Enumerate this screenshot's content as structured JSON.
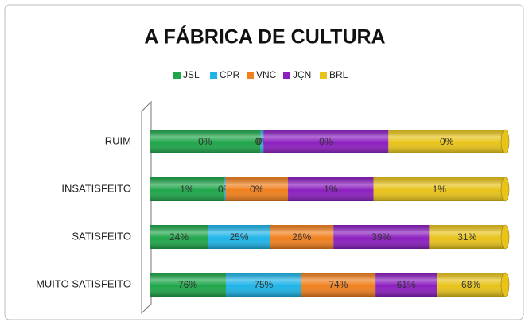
{
  "chart_data": {
    "type": "bar",
    "orientation": "horizontal",
    "stacked": "percent",
    "title": "A FÁBRICA DE CULTURA",
    "categories": [
      "RUIM",
      "INSATISFEITO",
      "SATISFEITO",
      "MUITO SATISFEITO"
    ],
    "legend": "top",
    "series": [
      {
        "name": "JSL",
        "color": "#1fa64a",
        "values": [
          0.4,
          0.55,
          24,
          76
        ],
        "value_labels": [
          "0%",
          "1%",
          "24%",
          "76%"
        ]
      },
      {
        "name": "CPR",
        "color": "#1eb4e8",
        "values": [
          0.01,
          0.01,
          25,
          75
        ],
        "value_labels": [
          "0%",
          "0%",
          "25%",
          "75%"
        ]
      },
      {
        "name": "VNC",
        "color": "#f0801e",
        "values": [
          0,
          0.46,
          26,
          74
        ],
        "value_labels": [
          "0%",
          "0%",
          "26%",
          "74%"
        ]
      },
      {
        "name": "JÇN",
        "color": "#8c1fc0",
        "values": [
          0.45,
          0.63,
          39,
          61
        ],
        "value_labels": [
          "0%",
          "1%",
          "39%",
          "61%"
        ]
      },
      {
        "name": "BRL",
        "color": "#e8c31a",
        "values": [
          0.42,
          0.97,
          31,
          68
        ],
        "value_labels": [
          "0%",
          "1%",
          "31%",
          "68%"
        ]
      }
    ]
  }
}
